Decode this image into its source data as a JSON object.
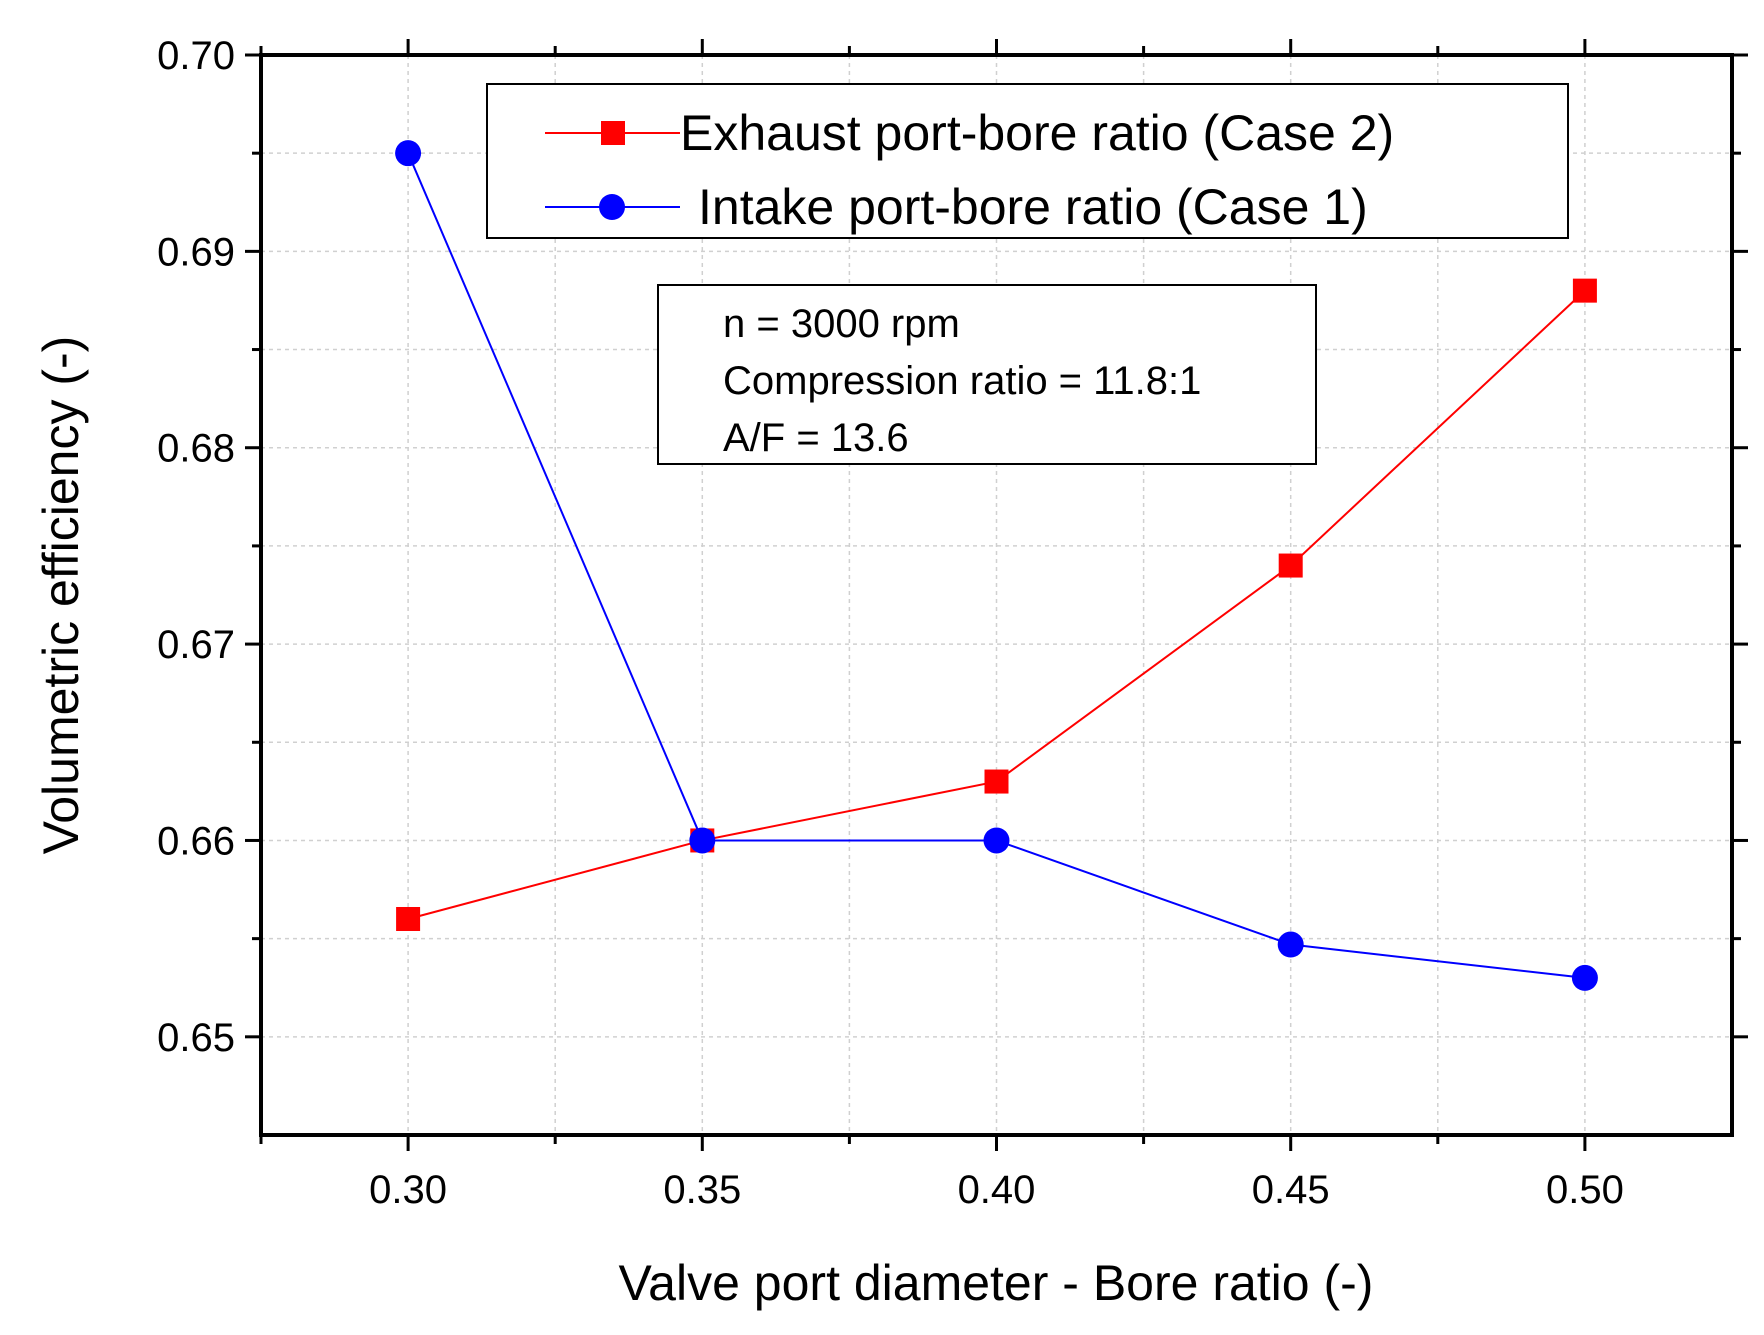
{
  "chart_data": {
    "type": "line",
    "xlabel": "Valve port diameter - Bore ratio (-)",
    "ylabel": "Volumetric efficiency (-)",
    "xlim": [
      0.275,
      0.525
    ],
    "ylim": [
      0.645,
      0.7
    ],
    "x_ticks": [
      0.3,
      0.35,
      0.4,
      0.45,
      0.5
    ],
    "x_tick_labels": [
      "0.30",
      "0.35",
      "0.40",
      "0.45",
      "0.50"
    ],
    "y_ticks": [
      0.65,
      0.66,
      0.67,
      0.68,
      0.69,
      0.7
    ],
    "y_tick_labels": [
      "0.65",
      "0.66",
      "0.67",
      "0.68",
      "0.69",
      "0.70"
    ],
    "grid": true,
    "legend_position": "top-right",
    "series": [
      {
        "name": "Exhaust port-bore ratio (Case 2)",
        "color": "#ff0000",
        "marker": "square",
        "x": [
          0.3,
          0.35,
          0.4,
          0.45,
          0.5
        ],
        "values": [
          0.656,
          0.66,
          0.663,
          0.674,
          0.688
        ]
      },
      {
        "name": "Intake port-bore ratio (Case 1)",
        "color": "#0000ff",
        "marker": "circle",
        "x": [
          0.3,
          0.35,
          0.4,
          0.45,
          0.5
        ],
        "values": [
          0.695,
          0.66,
          0.66,
          0.6547,
          0.653
        ]
      }
    ],
    "annotation": {
      "lines": [
        "n = 3000 rpm",
        "Compression ratio = 11.8:1",
        "A/F = 13.6"
      ]
    }
  }
}
